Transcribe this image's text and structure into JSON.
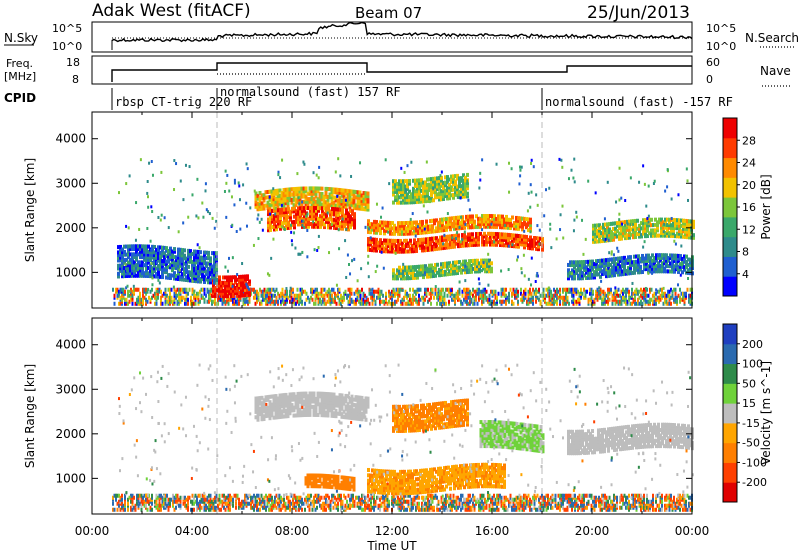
{
  "header": {
    "station": "Adak West (fitACF)",
    "beam": "Beam 07",
    "date": "25/Jun/2013"
  },
  "top_panels": {
    "nsky_label": "N.Sky",
    "nsky_ticks": [
      "10^5",
      "10^0"
    ],
    "nsearch_label": "N.Search",
    "nsearch_ticks": [
      "10^5",
      "10^0"
    ],
    "freq_label": [
      "Freq.",
      "[MHz]"
    ],
    "freq_ticks": [
      "18",
      "8"
    ],
    "nave_label": "Nave",
    "nave_ticks": [
      "60",
      "0"
    ],
    "cpid_label": "CPID",
    "cpid_segments": [
      {
        "label": "rbsp CT-trig 220 RF",
        "start_hour": 0.8,
        "end_hour": 5.0
      },
      {
        "label": "normalsound (fast) 157 RF",
        "start_hour": 5.0,
        "end_hour": 18.0
      },
      {
        "label": "normalsound (fast) -157 RF",
        "start_hour": 18.0,
        "end_hour": 24.0
      }
    ]
  },
  "chart_data": [
    {
      "type": "heatmap",
      "name": "power",
      "ylabel": "Slant Range [km]",
      "yticks": [
        "1000",
        "2000",
        "3000",
        "4000"
      ],
      "ylim": [
        200,
        4600
      ],
      "colorbar_label": "Power [dB]",
      "colorbar_ticks": [
        "4",
        "8",
        "12",
        "16",
        "20",
        "24",
        "28"
      ],
      "colorbar_range": [
        0,
        30
      ],
      "colors": [
        "#0000ff",
        "#1f5fd0",
        "#2e8b8b",
        "#3aa86a",
        "#7cc63a",
        "#f2c200",
        "#ff8a00",
        "#ff3b00",
        "#ee0000"
      ],
      "features": [
        {
          "h0": 6.5,
          "h1": 11.0,
          "r0": 2400,
          "r1": 2800,
          "p": 19
        },
        {
          "h0": 7.0,
          "h1": 10.5,
          "r0": 1900,
          "r1": 2350,
          "p": 24
        },
        {
          "h0": 11.0,
          "h1": 18.0,
          "r0": 1500,
          "r1": 1800,
          "p": 25
        },
        {
          "h0": 11.0,
          "h1": 17.5,
          "r0": 1900,
          "r1": 2200,
          "p": 21
        },
        {
          "h0": 12.0,
          "h1": 15.0,
          "r0": 2600,
          "r1": 3100,
          "p": 15
        },
        {
          "h0": 12.0,
          "h1": 16.0,
          "r0": 900,
          "r1": 1200,
          "p": 14
        },
        {
          "h0": 4.8,
          "h1": 6.3,
          "r0": 500,
          "r1": 950,
          "p": 28
        },
        {
          "h0": 20.0,
          "h1": 24.0,
          "r0": 1700,
          "r1": 2100,
          "p": 16
        },
        {
          "h0": 1.0,
          "h1": 5.0,
          "r0": 800,
          "r1": 1500,
          "p": 6
        },
        {
          "h0": 19.0,
          "h1": 24.0,
          "r0": 900,
          "r1": 1300,
          "p": 7
        }
      ]
    },
    {
      "type": "heatmap",
      "name": "velocity",
      "ylabel": "Slant Range [km]",
      "yticks": [
        "1000",
        "2000",
        "3000",
        "4000"
      ],
      "ylim": [
        200,
        4600
      ],
      "colorbar_label": "Velocity [m s^-1]",
      "colorbar_ticks": [
        "200",
        "100",
        "50",
        "15",
        "-15",
        "-50",
        "-100",
        "-200"
      ],
      "colorbar_range": [
        -250,
        250
      ],
      "colors": [
        "#1f3fc0",
        "#2a6ab0",
        "#2e8b4a",
        "#6fd23a",
        "#bdbdbd",
        "#ffa500",
        "#ff7f00",
        "#ff4000",
        "#e00000"
      ],
      "features": [
        {
          "h0": 6.5,
          "h1": 11.0,
          "r0": 2300,
          "r1": 2800,
          "v": 0
        },
        {
          "h0": 12.0,
          "h1": 15.0,
          "r0": 2100,
          "r1": 2700,
          "v": -60
        },
        {
          "h0": 8.5,
          "h1": 10.5,
          "r0": 700,
          "r1": 1000,
          "v": -70
        },
        {
          "h0": 11.0,
          "h1": 16.5,
          "r0": 700,
          "r1": 1200,
          "v": -40
        },
        {
          "h0": 15.5,
          "h1": 18.0,
          "r0": 1600,
          "r1": 2200,
          "v": 25
        },
        {
          "h0": 19.0,
          "h1": 24.0,
          "r0": 1600,
          "r1": 2100,
          "v": 0
        }
      ]
    }
  ],
  "x_axis": {
    "label": "Time UT",
    "ticks": [
      "00:00",
      "04:00",
      "08:00",
      "12:00",
      "16:00",
      "20:00",
      "00:00"
    ],
    "range_hours": [
      0,
      24
    ]
  }
}
